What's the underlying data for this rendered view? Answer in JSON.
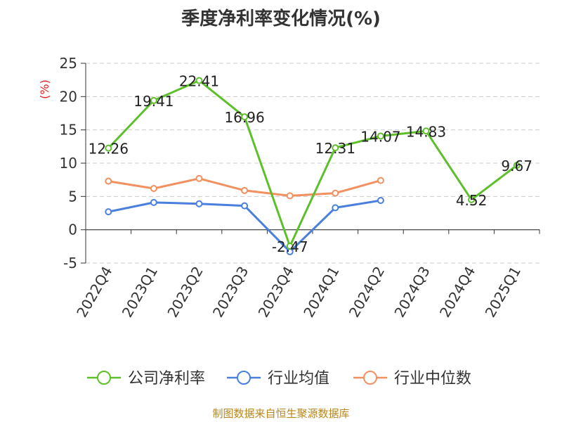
{
  "footer": {
    "source": "制图数据来自恒生聚源数据库"
  },
  "colors": {
    "company": "#5dbf2a",
    "industry_avg": "#4a7fde",
    "industry_median": "#f39060",
    "ylabel": "#e02020",
    "source": "#b8861b"
  },
  "chart_data": {
    "type": "line",
    "title": "季度净利率变化情况(%)",
    "ylabel": "(%)",
    "xlabel": "",
    "categories": [
      "2022Q4",
      "2023Q1",
      "2023Q2",
      "2023Q3",
      "2023Q4",
      "2024Q1",
      "2024Q2",
      "2024Q3",
      "2024Q4",
      "2025Q1"
    ],
    "ylim": [
      -5,
      25
    ],
    "yticks": [
      -5,
      0,
      5,
      10,
      15,
      20,
      25
    ],
    "grid": true,
    "legend_position": "bottom",
    "series": [
      {
        "name": "公司净利率",
        "color": "#5dbf2a",
        "values": [
          12.26,
          19.41,
          22.41,
          16.96,
          -2.47,
          12.31,
          14.07,
          14.83,
          4.52,
          9.67
        ],
        "labels": [
          "12.26",
          "19.41",
          "22.41",
          "16.96",
          "-2.47",
          "12.31",
          "14.07",
          "14.83",
          "4.52",
          "9.67"
        ]
      },
      {
        "name": "行业均值",
        "color": "#4a7fde",
        "values": [
          2.7,
          4.1,
          3.9,
          3.6,
          -3.3,
          3.3,
          4.4,
          null,
          null,
          null
        ]
      },
      {
        "name": "行业中位数",
        "color": "#f39060",
        "values": [
          7.3,
          6.2,
          7.7,
          5.9,
          5.1,
          5.5,
          7.4,
          null,
          null,
          null
        ]
      }
    ]
  }
}
